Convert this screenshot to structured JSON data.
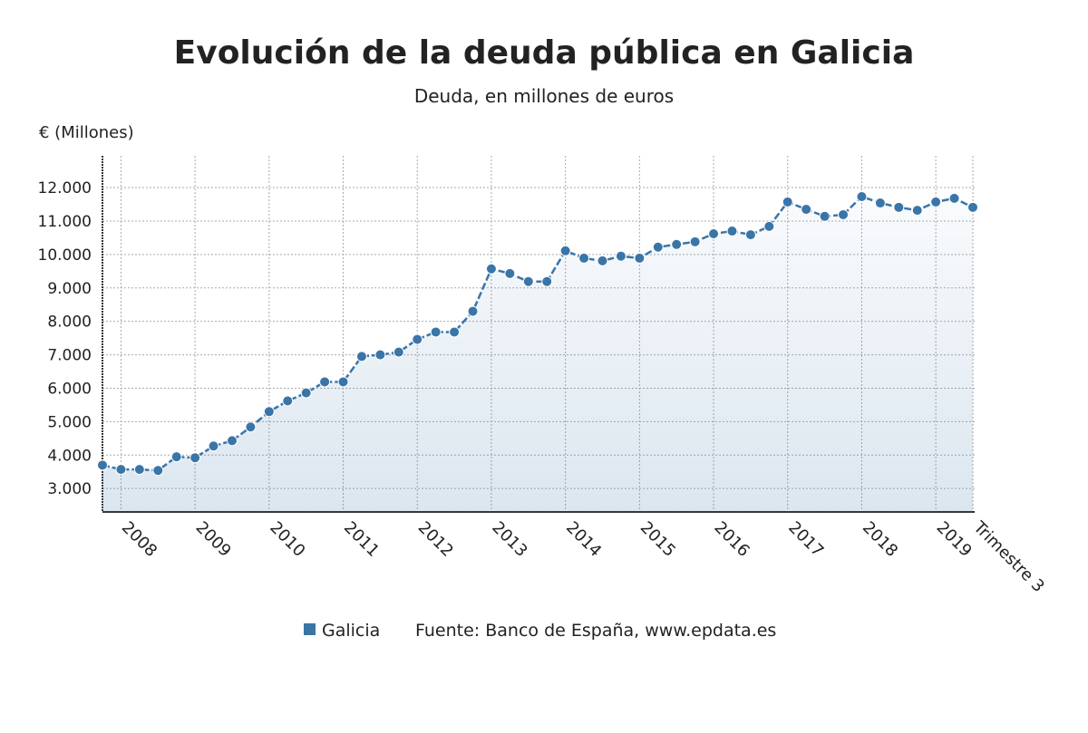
{
  "chart_data": {
    "type": "line",
    "title": "Evolución de la deuda pública en Galicia",
    "subtitle": "Deuda, en millones de euros",
    "y_axis_label": "€ (Millones)",
    "source": "Fuente: Banco de España, www.epdata.es",
    "categories": [
      null,
      "2008",
      null,
      null,
      null,
      "2009",
      null,
      null,
      null,
      "2010",
      null,
      null,
      null,
      "2011",
      null,
      null,
      null,
      "2012",
      null,
      null,
      null,
      "2013",
      null,
      null,
      null,
      "2014",
      null,
      null,
      null,
      "2015",
      null,
      null,
      null,
      "2016",
      null,
      null,
      null,
      "2017",
      null,
      null,
      null,
      "2018",
      null,
      null,
      null,
      "2019",
      null,
      "Trimestre 3"
    ],
    "series": [
      {
        "name": "Galicia",
        "color": "#3a75a8",
        "values": [
          3700,
          3570,
          3570,
          3540,
          3950,
          3920,
          4270,
          4430,
          4840,
          5300,
          5620,
          5860,
          6190,
          6190,
          6950,
          7000,
          7080,
          7460,
          7680,
          7680,
          8300,
          9570,
          9430,
          9190,
          9190,
          10110,
          9890,
          9810,
          9950,
          9890,
          10220,
          10300,
          10380,
          10620,
          10700,
          10590,
          10840,
          11570,
          11350,
          11140,
          11190,
          11730,
          11540,
          11410,
          11320,
          11570,
          11680,
          11410
        ]
      }
    ],
    "ylim": [
      2300,
      12950
    ],
    "yticks": [
      {
        "value": 3000,
        "label": "3.000"
      },
      {
        "value": 4000,
        "label": "4.000"
      },
      {
        "value": 5000,
        "label": "5.000"
      },
      {
        "value": 6000,
        "label": "6.000"
      },
      {
        "value": 7000,
        "label": "7.000"
      },
      {
        "value": 8000,
        "label": "8.000"
      },
      {
        "value": 9000,
        "label": "9.000"
      },
      {
        "value": 10000,
        "label": "10.000"
      },
      {
        "value": 11000,
        "label": "11.000"
      },
      {
        "value": 12000,
        "label": "12.000"
      }
    ],
    "grid": true
  }
}
